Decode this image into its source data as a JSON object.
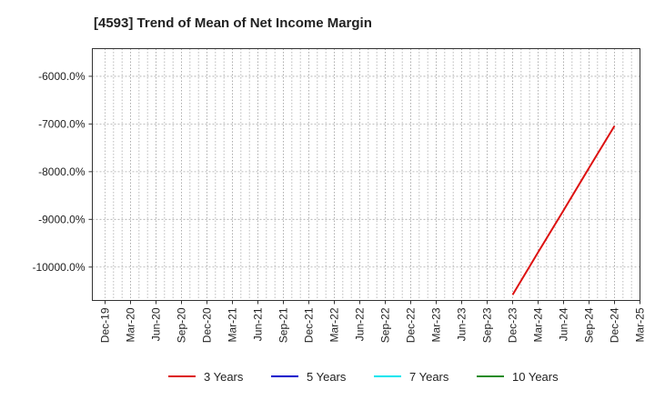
{
  "chart_data": {
    "type": "line",
    "title": "[4593]  Trend of Mean of Net Income Margin",
    "xlabel": "",
    "ylabel": "",
    "x_ticks": [
      "Dec-19",
      "Mar-20",
      "Jun-20",
      "Sep-20",
      "Dec-20",
      "Mar-21",
      "Jun-21",
      "Sep-21",
      "Dec-21",
      "Mar-22",
      "Jun-22",
      "Sep-22",
      "Dec-22",
      "Mar-23",
      "Jun-23",
      "Sep-23",
      "Dec-23",
      "Mar-24",
      "Jun-24",
      "Sep-24",
      "Dec-24",
      "Mar-25"
    ],
    "y_ticks": [
      -6000,
      -7000,
      -8000,
      -9000,
      -10000
    ],
    "y_tick_labels": [
      "-6000.0%",
      "-7000.0%",
      "-8000.0%",
      "-9000.0%",
      "-10000.0%"
    ],
    "ylim": [
      -10700,
      -5420
    ],
    "grid": true,
    "legend_position": "bottom",
    "series": [
      {
        "name": "3 Years",
        "color": "#dd1111",
        "x": [
          "Dec-23",
          "Mar-24",
          "Jun-24",
          "Sep-24",
          "Dec-24"
        ],
        "values": [
          -10580,
          -9690,
          -8810,
          -7920,
          -7040
        ]
      },
      {
        "name": "5 Years",
        "color": "#0000cc",
        "x": [],
        "values": []
      },
      {
        "name": "7 Years",
        "color": "#00e5ee",
        "x": [],
        "values": []
      },
      {
        "name": "10 Years",
        "color": "#228b22",
        "x": [],
        "values": []
      }
    ]
  }
}
